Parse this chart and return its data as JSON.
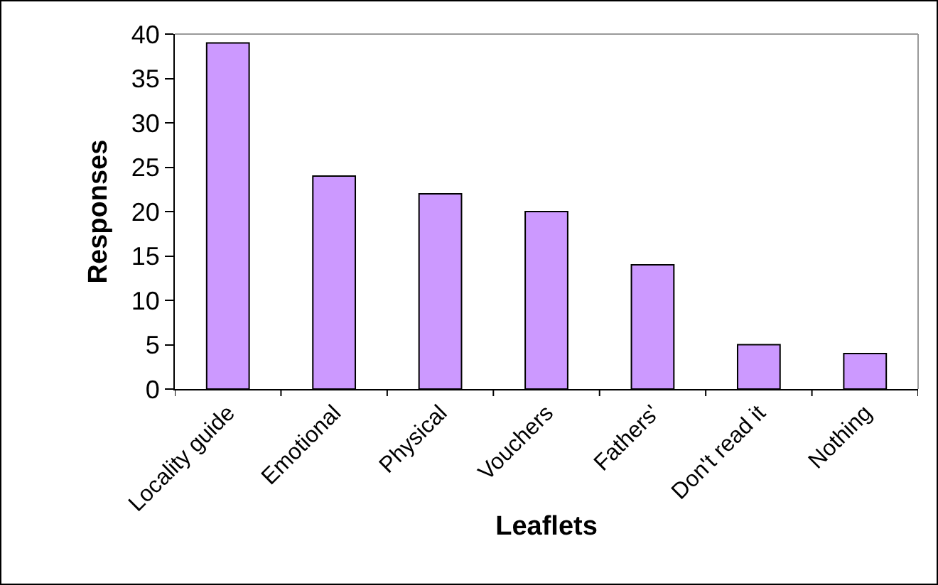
{
  "chart_data": {
    "type": "bar",
    "xlabel": "Leaflets",
    "ylabel": "Responses",
    "categories": [
      "Locality guide",
      "Emotional",
      "Physical",
      "Vouchers",
      "Fathers'",
      "Don't read it",
      "Nothing"
    ],
    "values": [
      39,
      24,
      22,
      20,
      14,
      5,
      4
    ],
    "color": "#cc99ff",
    "ylim": [
      0,
      40
    ],
    "yticks": [
      0,
      5,
      10,
      15,
      20,
      25,
      30,
      35,
      40
    ],
    "grid": false
  }
}
